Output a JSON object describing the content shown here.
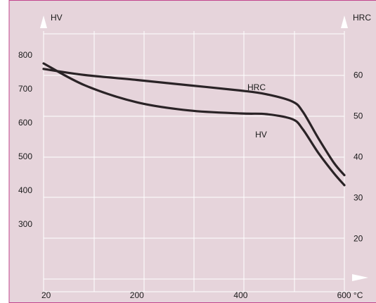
{
  "chart_data": {
    "type": "line",
    "title": "",
    "x": [
      20,
      100,
      200,
      300,
      400,
      450,
      500,
      520,
      550,
      580,
      600
    ],
    "xticks": [
      {
        "value": 20,
        "label": "20"
      },
      {
        "value": 200,
        "label": "200"
      },
      {
        "value": 400,
        "label": "400"
      },
      {
        "value": 600,
        "label": "600 °C"
      }
    ],
    "xlim": [
      20,
      600
    ],
    "y_left": {
      "label": "HV",
      "ticks": [
        300,
        400,
        500,
        600,
        700,
        800
      ],
      "lim": [
        100,
        900
      ]
    },
    "y_right": {
      "label": "HRC",
      "ticks": [
        20,
        30,
        40,
        50,
        60
      ],
      "lim": [
        10,
        70
      ]
    },
    "series": [
      {
        "name": "HRC",
        "axis": "right",
        "values": [
          61.5,
          60.0,
          58.8,
          57.5,
          56.2,
          55.3,
          53.5,
          51.0,
          44.5,
          38.5,
          35.5
        ],
        "label_anchor": {
          "x": 432,
          "y": 57
        }
      },
      {
        "name": "HV",
        "axis": "left",
        "values": [
          775,
          710,
          660,
          636,
          627,
          625,
          610,
          580,
          510,
          450,
          415
        ],
        "label_anchor": {
          "x": 447,
          "y": 565
        }
      }
    ],
    "grid": true,
    "colors": {
      "background": "#e6d4db",
      "grid": "#ffffff",
      "line": "#2a2326",
      "frame": "#c2448e"
    }
  }
}
